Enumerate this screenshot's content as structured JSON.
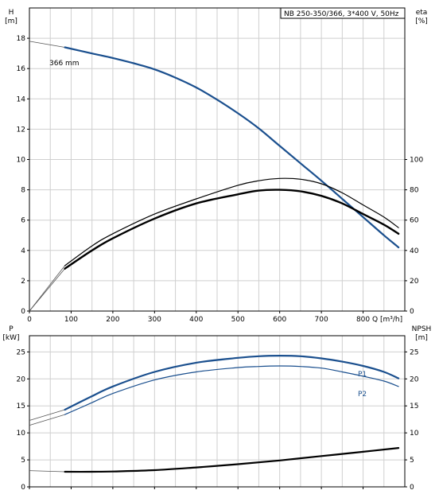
{
  "chart_data": [
    {
      "type": "line",
      "panel": "head-efficiency",
      "title": "NB 250-350/366, 3*400 V, 50Hz",
      "xlabel": "Q [m³/h]",
      "x_ticks": [
        "0",
        "100",
        "200",
        "300",
        "400",
        "500",
        "600",
        "700",
        "800"
      ],
      "xlim": [
        0,
        900
      ],
      "ylabel_left": [
        "H",
        "[m]"
      ],
      "ylim_left": [
        0,
        20
      ],
      "y_ticks_left": [
        "0",
        "2",
        "4",
        "6",
        "8",
        "10",
        "12",
        "14",
        "16",
        "18"
      ],
      "ylabel_right": [
        "eta",
        "[%]"
      ],
      "ylim_right": [
        0,
        200
      ],
      "y_ticks_right": [
        "0",
        "20",
        "40",
        "60",
        "80",
        "100"
      ],
      "grid": true,
      "annotations": [
        {
          "text": "366 mm"
        }
      ],
      "series": [
        {
          "key": "head",
          "axis": "left",
          "color": "#1a4f8e",
          "width": 2.2,
          "x": [
            85,
            150,
            200,
            250,
            300,
            350,
            400,
            450,
            500,
            550,
            600,
            650,
            700,
            750,
            800,
            850,
            885
          ],
          "y": [
            17.4,
            17.0,
            16.7,
            16.35,
            15.95,
            15.4,
            14.75,
            13.95,
            13.05,
            12.05,
            10.9,
            9.75,
            8.6,
            7.4,
            6.2,
            5.0,
            4.2
          ],
          "ext_x": [
            0,
            85
          ],
          "ext_y": [
            17.8,
            17.4
          ]
        },
        {
          "key": "eta-p1",
          "axis": "right",
          "color": "#000000",
          "width": 1.2,
          "x": [
            85,
            150,
            200,
            300,
            400,
            500,
            550,
            600,
            650,
            700,
            750,
            800,
            850,
            885
          ],
          "y": [
            30,
            43,
            51,
            64,
            74,
            83,
            86,
            87.5,
            87,
            84,
            78,
            70,
            62,
            55
          ],
          "ext_x": [
            0,
            85
          ],
          "ext_y": [
            0,
            30
          ]
        },
        {
          "key": "eta-p2",
          "axis": "right",
          "color": "#000000",
          "width": 2.4,
          "x": [
            85,
            150,
            200,
            300,
            400,
            500,
            550,
            600,
            650,
            700,
            750,
            800,
            850,
            885
          ],
          "y": [
            28,
            40,
            48,
            61,
            71,
            77,
            79.5,
            80,
            79,
            76,
            71,
            64,
            57,
            51
          ],
          "ext_x": [
            0,
            85
          ],
          "ext_y": [
            0,
            28
          ]
        }
      ]
    },
    {
      "type": "line",
      "panel": "power-npsh",
      "xlim": [
        0,
        900
      ],
      "ylabel_left": [
        "P",
        "[kW]"
      ],
      "ylim_left": [
        0,
        28
      ],
      "y_ticks_left": [
        "0",
        "5",
        "10",
        "15",
        "20",
        "25"
      ],
      "ylabel_right": [
        "NPSH",
        "[m]"
      ],
      "ylim_right": [
        0,
        28
      ],
      "y_ticks_right": [
        "0",
        "5",
        "10",
        "15",
        "20",
        "25"
      ],
      "grid": true,
      "series": [
        {
          "name": "P1",
          "axis": "left",
          "color": "#1a4f8e",
          "width": 2.2,
          "x": [
            85,
            150,
            200,
            300,
            400,
            500,
            550,
            600,
            650,
            700,
            750,
            800,
            850,
            885
          ],
          "y": [
            14.3,
            16.8,
            18.6,
            21.3,
            23.0,
            23.9,
            24.2,
            24.3,
            24.2,
            23.8,
            23.2,
            22.4,
            21.3,
            20.1
          ],
          "ext_x": [
            0,
            85
          ],
          "ext_y": [
            12.3,
            14.3
          ]
        },
        {
          "name": "P2",
          "axis": "left",
          "color": "#1a4f8e",
          "width": 1.2,
          "x": [
            85,
            150,
            200,
            300,
            400,
            500,
            550,
            600,
            650,
            700,
            750,
            800,
            850,
            885
          ],
          "y": [
            13.4,
            15.6,
            17.3,
            19.8,
            21.3,
            22.1,
            22.3,
            22.4,
            22.3,
            22.0,
            21.3,
            20.5,
            19.6,
            18.6
          ],
          "ext_x": [
            0,
            85
          ],
          "ext_y": [
            11.4,
            13.4
          ]
        },
        {
          "key": "npsh",
          "axis": "right",
          "color": "#000000",
          "width": 2.2,
          "x": [
            85,
            150,
            200,
            300,
            400,
            500,
            600,
            700,
            800,
            885
          ],
          "y": [
            2.8,
            2.8,
            2.85,
            3.1,
            3.6,
            4.2,
            4.9,
            5.7,
            6.5,
            7.2
          ],
          "ext_x": [
            0,
            85
          ],
          "ext_y": [
            3.0,
            2.8
          ]
        }
      ]
    }
  ]
}
